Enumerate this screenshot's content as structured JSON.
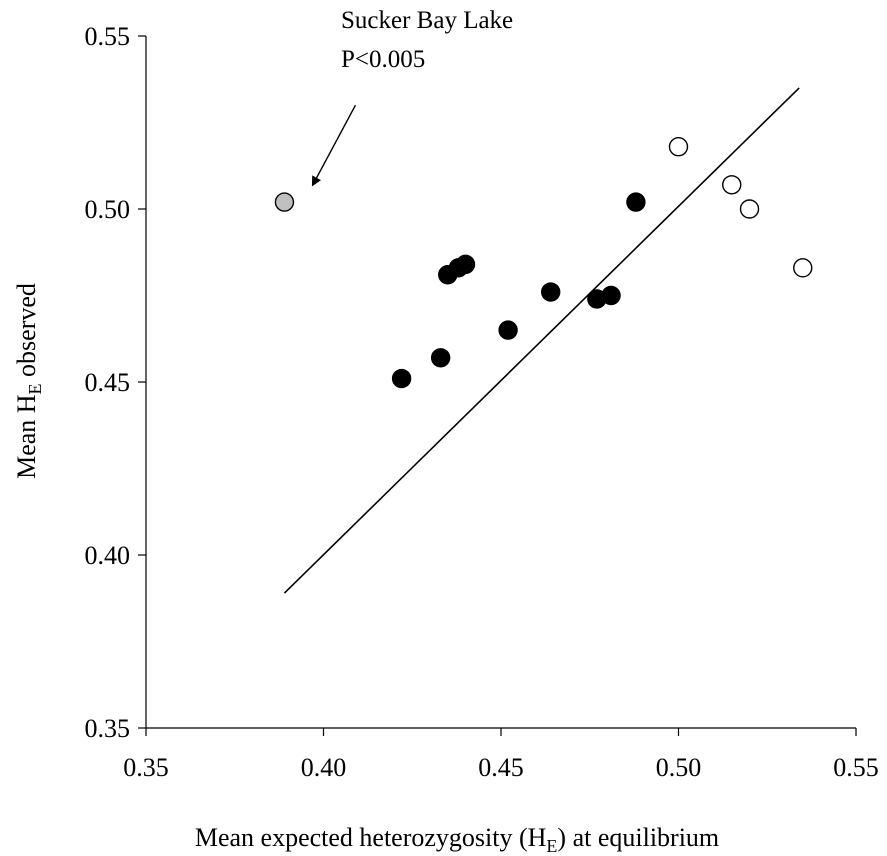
{
  "chart_data": {
    "type": "scatter",
    "xlabel": {
      "main": "Mean expected heterozygosity (H",
      "sub": "E",
      "tail": ") at equilibrium"
    },
    "ylabel": {
      "main": "Mean H",
      "sub": "E",
      "tail": " observed"
    },
    "xlim": [
      0.35,
      0.55
    ],
    "ylim": [
      0.35,
      0.55
    ],
    "xticks": [
      "0.35",
      "0.40",
      "0.45",
      "0.50",
      "0.55"
    ],
    "yticks": [
      "0.35",
      "0.40",
      "0.45",
      "0.50",
      "0.55"
    ],
    "grid": false,
    "series": [
      {
        "marker": "filled-black",
        "color": "#000000",
        "points": [
          {
            "x": 0.422,
            "y": 0.451
          },
          {
            "x": 0.433,
            "y": 0.457
          },
          {
            "x": 0.435,
            "y": 0.481
          },
          {
            "x": 0.438,
            "y": 0.483
          },
          {
            "x": 0.44,
            "y": 0.484
          },
          {
            "x": 0.452,
            "y": 0.465
          },
          {
            "x": 0.464,
            "y": 0.476
          },
          {
            "x": 0.477,
            "y": 0.474
          },
          {
            "x": 0.481,
            "y": 0.475
          },
          {
            "x": 0.488,
            "y": 0.502
          }
        ]
      },
      {
        "marker": "open-white",
        "color": "#ffffff",
        "points": [
          {
            "x": 0.5,
            "y": 0.518
          },
          {
            "x": 0.515,
            "y": 0.507
          },
          {
            "x": 0.52,
            "y": 0.5
          },
          {
            "x": 0.535,
            "y": 0.483
          }
        ]
      },
      {
        "marker": "grey",
        "color": "#c0c0c0",
        "points": [
          {
            "x": 0.389,
            "y": 0.502
          }
        ]
      }
    ],
    "reference_line": {
      "x": [
        0.389,
        0.534
      ],
      "y": [
        0.389,
        0.535
      ]
    },
    "annotation": {
      "lines": [
        "Sucker Bay Lake",
        "P<0.005"
      ],
      "arrow_from": {
        "x": 0.409,
        "y": 0.53
      },
      "arrow_to": {
        "x": 0.397,
        "y": 0.507
      }
    }
  }
}
